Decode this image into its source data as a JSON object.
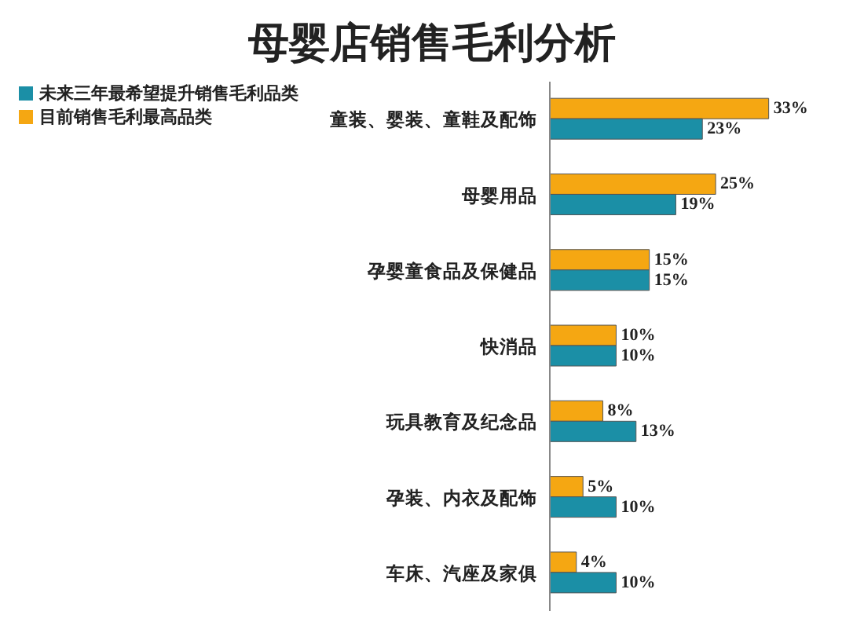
{
  "chart_data": {
    "type": "bar",
    "orientation": "horizontal",
    "title": "母婴店销售毛利分析",
    "categories": [
      "童装、婴装、童鞋及配饰",
      "母婴用品",
      "孕婴童食品及保健品",
      "快消品",
      "玩具教育及纪念品",
      "孕装、内衣及配饰",
      "车床、汽座及家俱"
    ],
    "series": [
      {
        "name": "目前销售毛利最高品类",
        "color": "#f5a712",
        "values": [
          33,
          25,
          15,
          10,
          8,
          5,
          4
        ],
        "value_labels": [
          "33%",
          "25%",
          "15%",
          "10%",
          "8%",
          "5%",
          "4%"
        ]
      },
      {
        "name": "未来三年最希望提升销售毛利品类",
        "color": "#1b8fa6",
        "values": [
          23,
          19,
          15,
          10,
          13,
          10,
          10
        ],
        "value_labels": [
          "23%",
          "19%",
          "15%",
          "10%",
          "13%",
          "10%",
          "10%"
        ]
      }
    ],
    "legend": "top left",
    "grid": false
  }
}
